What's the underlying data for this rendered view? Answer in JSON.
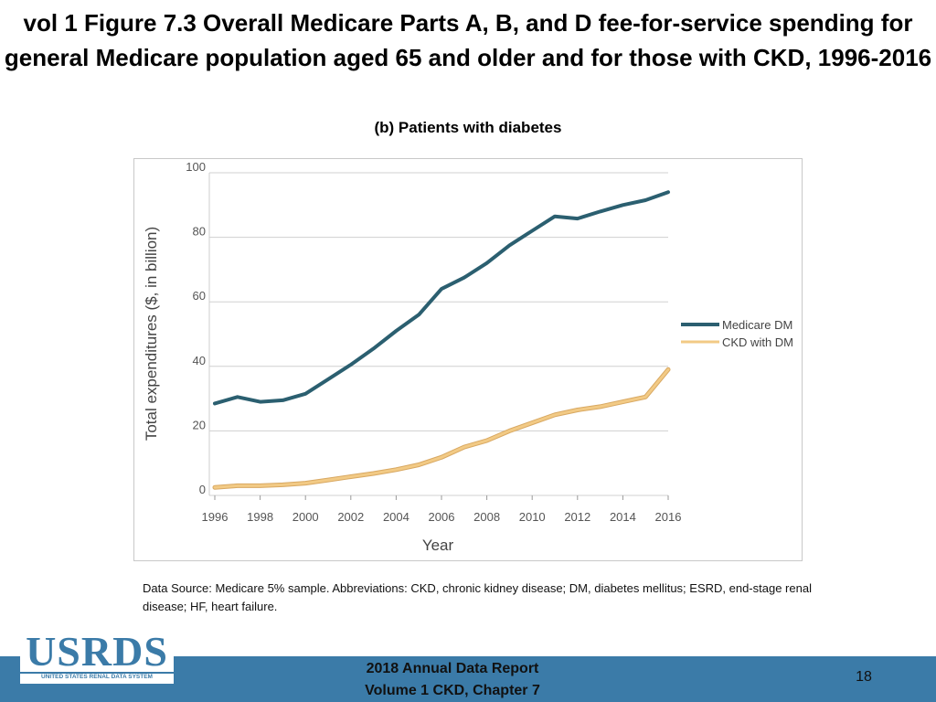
{
  "slide": {
    "title": "vol 1 Figure 7.3 Overall Medicare Parts A, B, and D fee-for-service spending for general Medicare population aged 65 and older and for those with CKD, 1996-2016",
    "subtitle": "(b) Patients with diabetes",
    "note": "Data Source: Medicare 5% sample. Abbreviations: CKD, chronic kidney disease; DM, diabetes mellitus; ESRD, end-stage renal disease; HF, heart failure.",
    "footer_line1": "2018 Annual Data Report",
    "footer_line2": "Volume 1 CKD, Chapter 7",
    "page_number": "18"
  },
  "logo": {
    "text": "USRDS",
    "subtext": "UNITED STATES RENAL DATA SYSTEM"
  },
  "chart_data": {
    "type": "line",
    "title": "(b) Patients with diabetes",
    "xlabel": "Year",
    "ylabel": "Total expenditures ($, in billion)",
    "x": [
      1996,
      1997,
      1998,
      1999,
      2000,
      2001,
      2002,
      2003,
      2004,
      2005,
      2006,
      2007,
      2008,
      2009,
      2010,
      2011,
      2012,
      2013,
      2014,
      2015,
      2016
    ],
    "xticks": [
      "1996",
      "1998",
      "2000",
      "2002",
      "2004",
      "2006",
      "2008",
      "2010",
      "2012",
      "2014",
      "2016"
    ],
    "yticks": [
      "0",
      "20",
      "40",
      "60",
      "80",
      "100"
    ],
    "xlim": [
      1996,
      2016
    ],
    "ylim": [
      0,
      100
    ],
    "grid": "horizontal",
    "legend_position": "right",
    "series": [
      {
        "name": "Medicare DM",
        "color": "#2b5f70",
        "values": [
          28.5,
          30.5,
          29.0,
          29.5,
          31.5,
          36.0,
          40.5,
          45.5,
          51.0,
          56.0,
          64.0,
          67.5,
          72.0,
          77.5,
          82.0,
          86.5,
          85.8,
          88.0,
          90.0,
          91.5,
          94.0
        ]
      },
      {
        "name": "CKD with DM",
        "color": "#f2ca85",
        "values": [
          2.5,
          3.0,
          3.0,
          3.3,
          3.8,
          4.8,
          5.8,
          6.8,
          8.0,
          9.5,
          11.8,
          15.0,
          17.0,
          20.0,
          22.5,
          25.0,
          26.5,
          27.5,
          29.0,
          30.5,
          39.0
        ]
      }
    ]
  }
}
